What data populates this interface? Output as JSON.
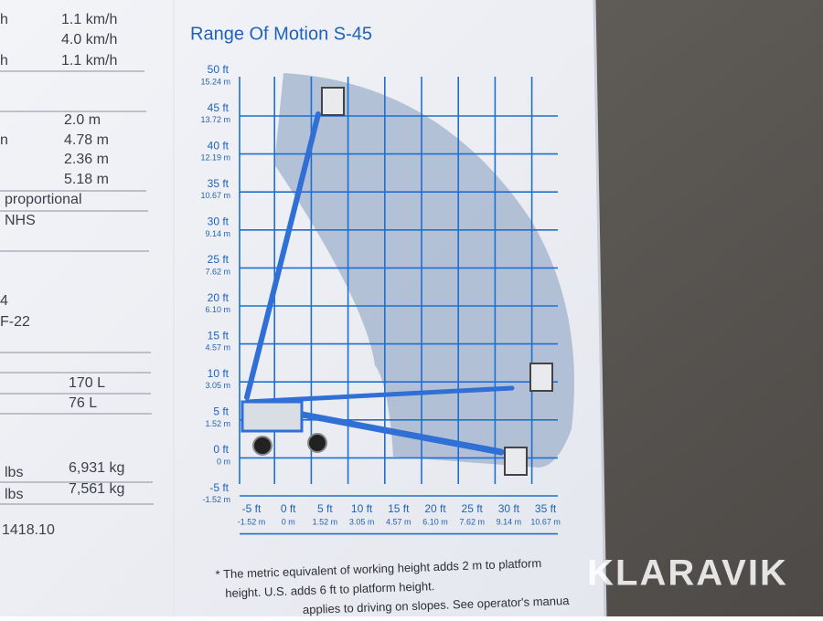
{
  "title": "Range Of Motion S-45",
  "y_labels": [
    {
      "ft": "50 ft",
      "m": "15.24 m"
    },
    {
      "ft": "45 ft",
      "m": "13.72 m"
    },
    {
      "ft": "40 ft",
      "m": "12.19 m"
    },
    {
      "ft": "35 ft",
      "m": "10.67 m"
    },
    {
      "ft": "30 ft",
      "m": "9.14 m"
    },
    {
      "ft": "25 ft",
      "m": "7.62 m"
    },
    {
      "ft": "20 ft",
      "m": "6.10 m"
    },
    {
      "ft": "15 ft",
      "m": "4.57 m"
    },
    {
      "ft": "10 ft",
      "m": "3.05 m"
    },
    {
      "ft": "5 ft",
      "m": "1.52 m"
    },
    {
      "ft": "0 ft",
      "m": "0 m"
    },
    {
      "ft": "-5 ft",
      "m": "-1.52 m"
    }
  ],
  "x_labels": [
    {
      "ft": "-5 ft",
      "m": "-1.52 m"
    },
    {
      "ft": "0 ft",
      "m": "0 m"
    },
    {
      "ft": "5 ft",
      "m": "1.52 m"
    },
    {
      "ft": "10 ft",
      "m": "3.05 m"
    },
    {
      "ft": "15 ft",
      "m": "4.57 m"
    },
    {
      "ft": "20 ft",
      "m": "6.10 m"
    },
    {
      "ft": "25 ft",
      "m": "7.62 m"
    },
    {
      "ft": "30 ft",
      "m": "9.14 m"
    },
    {
      "ft": "35 ft",
      "m": "10.67 m"
    }
  ],
  "specs": [
    "h",
    "1.1 km/h",
    "4.0 km/h",
    "h",
    "1.1 km/h",
    "2.0 m",
    "n",
    "4.78 m",
    "2.36 m",
    "5.18 m",
    "proportional",
    "NHS",
    "4",
    "F-22",
    "170 L",
    "76 L",
    "lbs",
    "6,931 kg",
    "lbs",
    "7,561 kg",
    "1418.10"
  ],
  "footnote": [
    "* The metric equivalent of working height adds 2 m to platform",
    "height. U.S. adds 6 ft to platform height.",
    "applies to driving on slopes.  See operator's manua"
  ],
  "watermark": "KLARAVIK"
}
